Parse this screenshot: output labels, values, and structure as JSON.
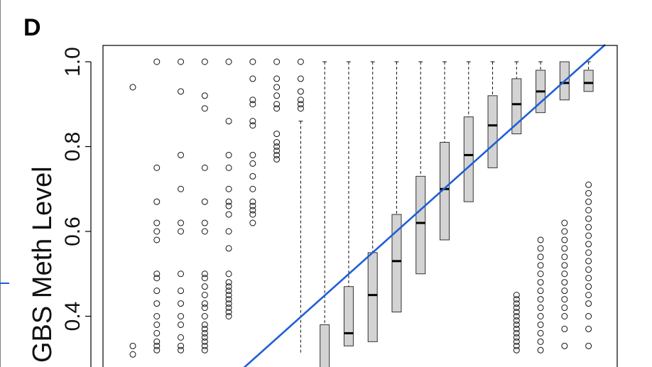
{
  "chart_data": {
    "type": "boxplot",
    "panel_label": "D",
    "ylabel": "GBS Meth Level",
    "ylim_visible": [
      0.31,
      1.05
    ],
    "yticks": [
      0.4,
      0.6,
      0.8,
      1.0
    ],
    "ytick_labels": [
      "0.4",
      "0.6",
      "0.8",
      "1.0"
    ],
    "box_fill": "#d3d3d3",
    "fit_line": {
      "color": "#1f5fd6",
      "slope": 1,
      "intercept": 0
    },
    "boxes": [
      {
        "q1": null,
        "median": null,
        "q3": null,
        "whisker_hi": null,
        "outliers": [
          0.94,
          0.33,
          0.31
        ]
      },
      {
        "q1": null,
        "median": null,
        "q3": null,
        "whisker_hi": null,
        "outliers": [
          1.0,
          0.75,
          0.67,
          0.62,
          0.6,
          0.58,
          0.5,
          0.49,
          0.46,
          0.43,
          0.4,
          0.38,
          0.36,
          0.34,
          0.33,
          0.32
        ]
      },
      {
        "q1": null,
        "median": null,
        "q3": null,
        "whisker_hi": null,
        "outliers": [
          1.0,
          0.93,
          0.78,
          0.7,
          0.62,
          0.6,
          0.5,
          0.46,
          0.43,
          0.4,
          0.38,
          0.35,
          0.33,
          0.32
        ]
      },
      {
        "q1": null,
        "median": null,
        "q3": null,
        "whisker_hi": null,
        "outliers": [
          1.0,
          0.92,
          0.89,
          0.75,
          0.67,
          0.62,
          0.6,
          0.5,
          0.49,
          0.47,
          0.45,
          0.43,
          0.42,
          0.4,
          0.38,
          0.37,
          0.36,
          0.35,
          0.34,
          0.33,
          0.32
        ]
      },
      {
        "q1": null,
        "median": null,
        "q3": null,
        "whisker_hi": null,
        "outliers": [
          1.0,
          0.86,
          0.78,
          0.75,
          0.7,
          0.67,
          0.66,
          0.64,
          0.6,
          0.56,
          0.5,
          0.48,
          0.47,
          0.46,
          0.45,
          0.44,
          0.43,
          0.42,
          0.41,
          0.4
        ]
      },
      {
        "q1": null,
        "median": null,
        "q3": null,
        "whisker_hi": null,
        "outliers": [
          1.0,
          0.96,
          0.91,
          0.9,
          0.86,
          0.85,
          0.78,
          0.76,
          0.73,
          0.7,
          0.67,
          0.66,
          0.65,
          0.64,
          0.62
        ]
      },
      {
        "q1": null,
        "median": null,
        "q3": null,
        "whisker_hi": null,
        "outliers": [
          1.0,
          0.96,
          0.94,
          0.92,
          0.9,
          0.89,
          0.83,
          0.81,
          0.8,
          0.79,
          0.78,
          0.77
        ]
      },
      {
        "q1": null,
        "median": null,
        "q3": null,
        "whisker_hi": 0.86,
        "outliers": [
          1.0,
          0.96,
          0.93,
          0.91,
          0.9,
          0.89
        ]
      },
      {
        "q1": null,
        "median": null,
        "q3": 0.38,
        "whisker_hi": 1.0,
        "outliers": []
      },
      {
        "q1": 0.33,
        "median": 0.36,
        "q3": 0.47,
        "whisker_hi": 1.0,
        "outliers": []
      },
      {
        "q1": 0.34,
        "median": 0.45,
        "q3": 0.55,
        "whisker_hi": 1.0,
        "outliers": []
      },
      {
        "q1": 0.41,
        "median": 0.53,
        "q3": 0.64,
        "whisker_hi": 1.0,
        "outliers": []
      },
      {
        "q1": 0.5,
        "median": 0.62,
        "q3": 0.73,
        "whisker_hi": 1.0,
        "outliers": []
      },
      {
        "q1": 0.58,
        "median": 0.7,
        "q3": 0.81,
        "whisker_hi": 1.0,
        "outliers": []
      },
      {
        "q1": 0.67,
        "median": 0.78,
        "q3": 0.87,
        "whisker_hi": 1.0,
        "outliers": []
      },
      {
        "q1": 0.75,
        "median": 0.85,
        "q3": 0.92,
        "whisker_hi": 1.0,
        "outliers": []
      },
      {
        "q1": 0.83,
        "median": 0.9,
        "q3": 0.96,
        "whisker_hi": 1.0,
        "outliers": [
          0.45,
          0.44,
          0.43,
          0.42,
          0.41,
          0.4,
          0.39,
          0.38,
          0.37,
          0.36,
          0.35,
          0.34,
          0.33,
          0.32
        ]
      },
      {
        "q1": 0.88,
        "median": 0.93,
        "q3": 0.98,
        "whisker_hi": 1.0,
        "outliers": [
          0.58,
          0.56,
          0.54,
          0.52,
          0.5,
          0.48,
          0.46,
          0.44,
          0.42,
          0.4,
          0.38,
          0.36,
          0.34,
          0.32
        ]
      },
      {
        "q1": 0.91,
        "median": 0.95,
        "q3": 1.0,
        "whisker_hi": 1.0,
        "outliers": [
          0.62,
          0.6,
          0.58,
          0.56,
          0.54,
          0.52,
          0.5,
          0.48,
          0.46,
          0.44,
          0.42,
          0.4,
          0.37,
          0.33
        ]
      },
      {
        "q1": 0.93,
        "median": 0.95,
        "q3": 0.98,
        "whisker_hi": 1.0,
        "outliers": [
          0.71,
          0.69,
          0.67,
          0.65,
          0.63,
          0.61,
          0.59,
          0.57,
          0.55,
          0.53,
          0.51,
          0.49,
          0.47,
          0.45,
          0.43,
          0.4,
          0.37,
          0.33
        ]
      }
    ]
  }
}
